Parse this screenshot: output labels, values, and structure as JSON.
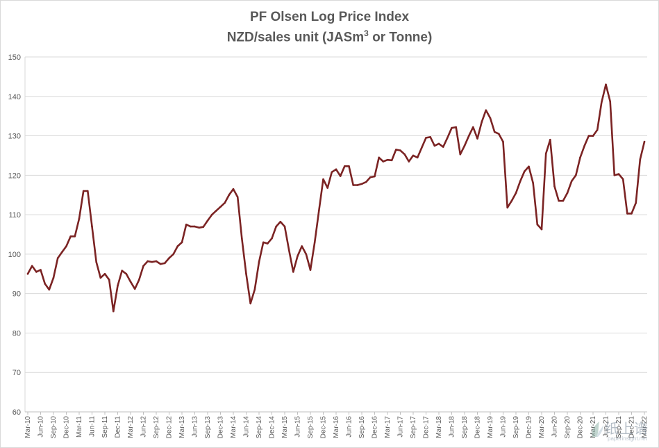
{
  "chart_data": {
    "type": "line",
    "title_line1": "PF Olsen Log Price Index",
    "title_line2": "NZD/sales unit (JASm³ or Tonne)",
    "ylim": [
      60,
      150
    ],
    "y_ticks": [
      "60",
      "70",
      "80",
      "90",
      "100",
      "110",
      "120",
      "130",
      "140",
      "150"
    ],
    "x_tick_labels": [
      "Mar-10",
      "Jun-10",
      "Sep-10",
      "Dec-10",
      "Mar-11",
      "Jun-11",
      "Sep-11",
      "Dec-11",
      "Mar-12",
      "Jun-12",
      "Sep-12",
      "Dec-12",
      "Mar-13",
      "Jun-13",
      "Sep-13",
      "Dec-13",
      "Mar-14",
      "Jun-14",
      "Sep-14",
      "Dec-14",
      "Mar-15",
      "Jun-15",
      "Sep-15",
      "Dec-15",
      "Mar-16",
      "Jun-16",
      "Sep-16",
      "Dec-16",
      "Mar-17",
      "Jun-17",
      "Sep-17",
      "Dec-17",
      "Mar-18",
      "Jun-18",
      "Sep-18",
      "Dec-18",
      "Mar-19",
      "Jun-19",
      "Sep-19",
      "Dec-19",
      "Mar-20",
      "Jun-20",
      "Sep-20",
      "Dec-20",
      "Mar-21",
      "Jun-21",
      "Sep-21",
      "Dec-21",
      "Mar-22"
    ],
    "x_start": "Mar-10",
    "x_interval": "monthly",
    "grid": "horizontal",
    "legend": "none",
    "line_color": "#7b2323",
    "series": [
      {
        "values": [
          95,
          97,
          95.5,
          96,
          92.5,
          91,
          94,
          99,
          100.5,
          102,
          104.5,
          104.5,
          109,
          116,
          116,
          107,
          98,
          94,
          95,
          93.5,
          85.5,
          92,
          95.8,
          95,
          93,
          91.2,
          93.5,
          97,
          98.2,
          98,
          98.2,
          97.5,
          97.7,
          99,
          100,
          102,
          103,
          107.5,
          107,
          107,
          106.7,
          106.9,
          108.5,
          110,
          111,
          112,
          113,
          115,
          116.5,
          114.5,
          104,
          95,
          87.5,
          91,
          98,
          103,
          102.7,
          104,
          107,
          108.2,
          107,
          101,
          95.5,
          99.5,
          102,
          100,
          96,
          103,
          111,
          119,
          116.8,
          120.8,
          121.5,
          119.8,
          122.3,
          122.3,
          117.5,
          117.5,
          117.8,
          118.3,
          119.5,
          119.7,
          124.5,
          123.5,
          123.9,
          123.8,
          126.5,
          126.3,
          125.3,
          123.5,
          125,
          124.5,
          127,
          129.5,
          129.7,
          127.5,
          128,
          127.2,
          129.5,
          132,
          132.2,
          125.3,
          127.5,
          130,
          132.2,
          129.3,
          133.5,
          136.5,
          134.5,
          131,
          130.5,
          128.5,
          111.8,
          113.5,
          115.5,
          118.5,
          121,
          122.2,
          118,
          107.5,
          106.3,
          125.5,
          129,
          117.2,
          113.5,
          113.5,
          115.5,
          118.5,
          120,
          124.5,
          127.5,
          130,
          130,
          131.5,
          138.5,
          143,
          138.7,
          120,
          120.3,
          119,
          110.3,
          110.3,
          113,
          124,
          128.5
        ]
      }
    ]
  },
  "watermark": {
    "text": "纸上谱",
    "url": "paperinsight.net"
  }
}
